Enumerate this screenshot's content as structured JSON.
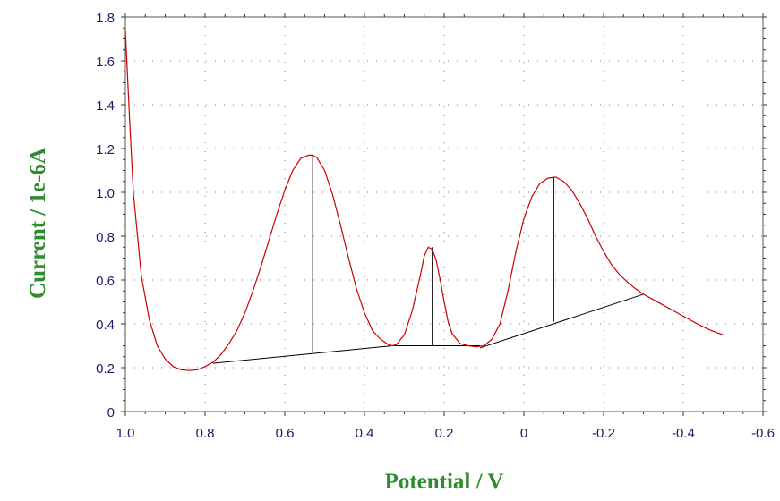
{
  "chart_data": {
    "type": "line",
    "title": "",
    "xlabel": "Potential / V",
    "ylabel": "Current / 1e-6A",
    "xlim": [
      1.0,
      -0.6
    ],
    "ylim": [
      0,
      1.8
    ],
    "x_reversed": true,
    "xticks": [
      1.0,
      0.8,
      0.6,
      0.4,
      0.2,
      0,
      -0.2,
      -0.4,
      -0.6
    ],
    "xtick_labels": [
      "1.0",
      "0.8",
      "0.6",
      "0.4",
      "0.2",
      "0",
      "-0.2",
      "-0.4",
      "-0.6"
    ],
    "yticks": [
      0,
      0.2,
      0.4,
      0.6,
      0.8,
      1.0,
      1.2,
      1.4,
      1.6,
      1.8
    ],
    "ytick_labels": [
      "0",
      "0.2",
      "0.4",
      "0.6",
      "0.8",
      "1.0",
      "1.2",
      "1.4",
      "1.6",
      "1.8"
    ],
    "grid": "dotted",
    "colors": {
      "curve": "#cc0000",
      "baseline": "#000000",
      "axis_labels": "#2e8b2e",
      "tick_labels": "#1c1c6e",
      "grid": "#7a7a7a"
    },
    "series": [
      {
        "x": [
          1.0,
          0.99,
          0.98,
          0.96,
          0.94,
          0.92,
          0.9,
          0.88,
          0.86,
          0.84,
          0.82,
          0.8,
          0.78,
          0.76,
          0.74,
          0.72,
          0.7,
          0.68,
          0.66,
          0.64,
          0.62,
          0.6,
          0.58,
          0.56,
          0.54,
          0.53,
          0.52,
          0.5,
          0.48,
          0.46,
          0.44,
          0.42,
          0.4,
          0.38,
          0.36,
          0.34,
          0.33,
          0.32,
          0.3,
          0.28,
          0.26,
          0.25,
          0.24,
          0.23,
          0.22,
          0.21,
          0.2,
          0.19,
          0.18,
          0.16,
          0.14,
          0.12,
          0.1,
          0.08,
          0.06,
          0.04,
          0.02,
          0,
          -0.02,
          -0.04,
          -0.06,
          -0.08,
          -0.1,
          -0.12,
          -0.14,
          -0.16,
          -0.18,
          -0.2,
          -0.22,
          -0.24,
          -0.26,
          -0.28,
          -0.3,
          -0.32,
          -0.35,
          -0.38,
          -0.41,
          -0.44,
          -0.47,
          -0.5
        ],
        "values": [
          1.74,
          1.35,
          1.0,
          0.62,
          0.42,
          0.3,
          0.24,
          0.205,
          0.19,
          0.187,
          0.19,
          0.205,
          0.225,
          0.26,
          0.31,
          0.37,
          0.45,
          0.55,
          0.66,
          0.78,
          0.9,
          1.01,
          1.1,
          1.155,
          1.17,
          1.17,
          1.16,
          1.1,
          0.99,
          0.85,
          0.7,
          0.56,
          0.45,
          0.37,
          0.33,
          0.305,
          0.3,
          0.305,
          0.35,
          0.46,
          0.62,
          0.71,
          0.75,
          0.74,
          0.69,
          0.6,
          0.5,
          0.41,
          0.355,
          0.31,
          0.3,
          0.295,
          0.3,
          0.33,
          0.4,
          0.55,
          0.73,
          0.88,
          0.98,
          1.04,
          1.065,
          1.07,
          1.05,
          1.01,
          0.95,
          0.88,
          0.8,
          0.73,
          0.67,
          0.625,
          0.59,
          0.56,
          0.535,
          0.515,
          0.485,
          0.455,
          0.425,
          0.395,
          0.37,
          0.35
        ]
      }
    ],
    "baselines": [
      {
        "x": [
          0.78,
          0.33
        ],
        "values": [
          0.22,
          0.3
        ]
      },
      {
        "x": [
          0.33,
          0.11
        ],
        "values": [
          0.3,
          0.3
        ]
      },
      {
        "x": [
          0.11,
          -0.3
        ],
        "values": [
          0.29,
          0.535
        ]
      }
    ],
    "peak_markers": [
      {
        "x": 0.53,
        "top": 1.17,
        "bottom": 0.27
      },
      {
        "x": 0.23,
        "top": 0.75,
        "bottom": 0.3
      },
      {
        "x": -0.075,
        "top": 1.07,
        "bottom": 0.41
      }
    ]
  }
}
